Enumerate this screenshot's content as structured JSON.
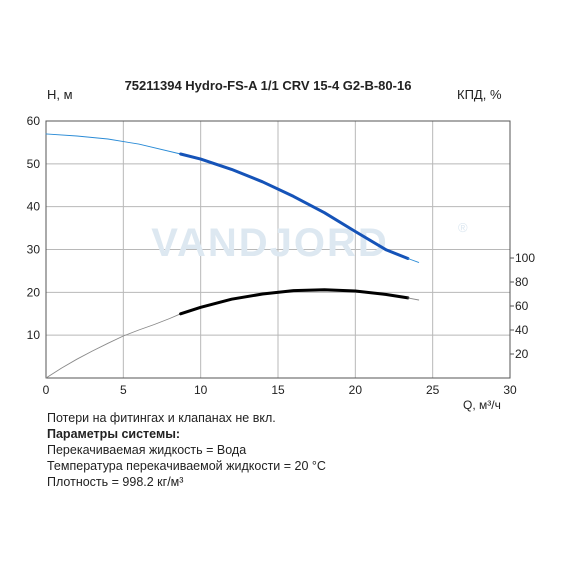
{
  "chart_data": {
    "type": "line",
    "title": "75211394 Hydro-FS-A 1/1 CRV 15-4 G2-B-80-16",
    "watermark": "VANDJORD",
    "watermark_mark": "®",
    "xlabel": "Q, м³/ч",
    "ylabel_left": "Н, м",
    "ylabel_right": "КПД, %",
    "xlim": [
      0,
      30
    ],
    "ylim_left": [
      0,
      60
    ],
    "xticks": [
      0,
      5,
      10,
      15,
      20,
      25,
      30
    ],
    "yticks_left": [
      10,
      20,
      30,
      40,
      50,
      60
    ],
    "yticks_right": [
      20,
      40,
      60,
      80,
      100
    ],
    "right_axis_ylim": [
      0,
      100
    ],
    "grid": true,
    "series": [
      {
        "color": "#2a8bd6",
        "style": "thin",
        "x": [
          0,
          2,
          4,
          6,
          8.7
        ],
        "y": [
          57,
          56.5,
          55.8,
          54.6,
          52.3
        ]
      },
      {
        "color": "#1553b8",
        "style": "thick",
        "x": [
          8.7,
          10,
          12,
          14,
          16,
          18,
          20,
          22,
          23.4
        ],
        "y": [
          52.3,
          51.1,
          48.7,
          45.8,
          42.4,
          38.6,
          34.2,
          29.9,
          27.9
        ]
      },
      {
        "color": "#2a8bd6",
        "style": "thin",
        "x": [
          23.4,
          24.1
        ],
        "y": [
          27.9,
          27.0
        ]
      },
      {
        "color": "#8a8a8a",
        "style": "thin",
        "x": [
          0,
          1,
          2,
          3,
          4,
          5,
          6,
          7,
          8,
          8.7
        ],
        "y": [
          0,
          2.3,
          4.4,
          6.3,
          8.1,
          9.8,
          11.2,
          12.5,
          13.9,
          15.0
        ]
      },
      {
        "color": "#000000",
        "style": "thick",
        "x": [
          8.7,
          10,
          12,
          14,
          16,
          18,
          20,
          22,
          23.4
        ],
        "y": [
          15.0,
          16.5,
          18.4,
          19.6,
          20.4,
          20.6,
          20.3,
          19.5,
          18.7
        ]
      },
      {
        "color": "#8a8a8a",
        "style": "thin",
        "x": [
          23.4,
          24.1
        ],
        "y": [
          18.7,
          18.2
        ]
      }
    ]
  },
  "notes": {
    "line1": "Потери на фитингах и клапанах не вкл.",
    "heading": "Параметры системы:",
    "fluid": "Перекачиваемая жидкость = Вода",
    "temperature": "Температура перекачиваемой жидкости = 20 °C",
    "density": "Плотность = 998.2 кг/м³"
  }
}
